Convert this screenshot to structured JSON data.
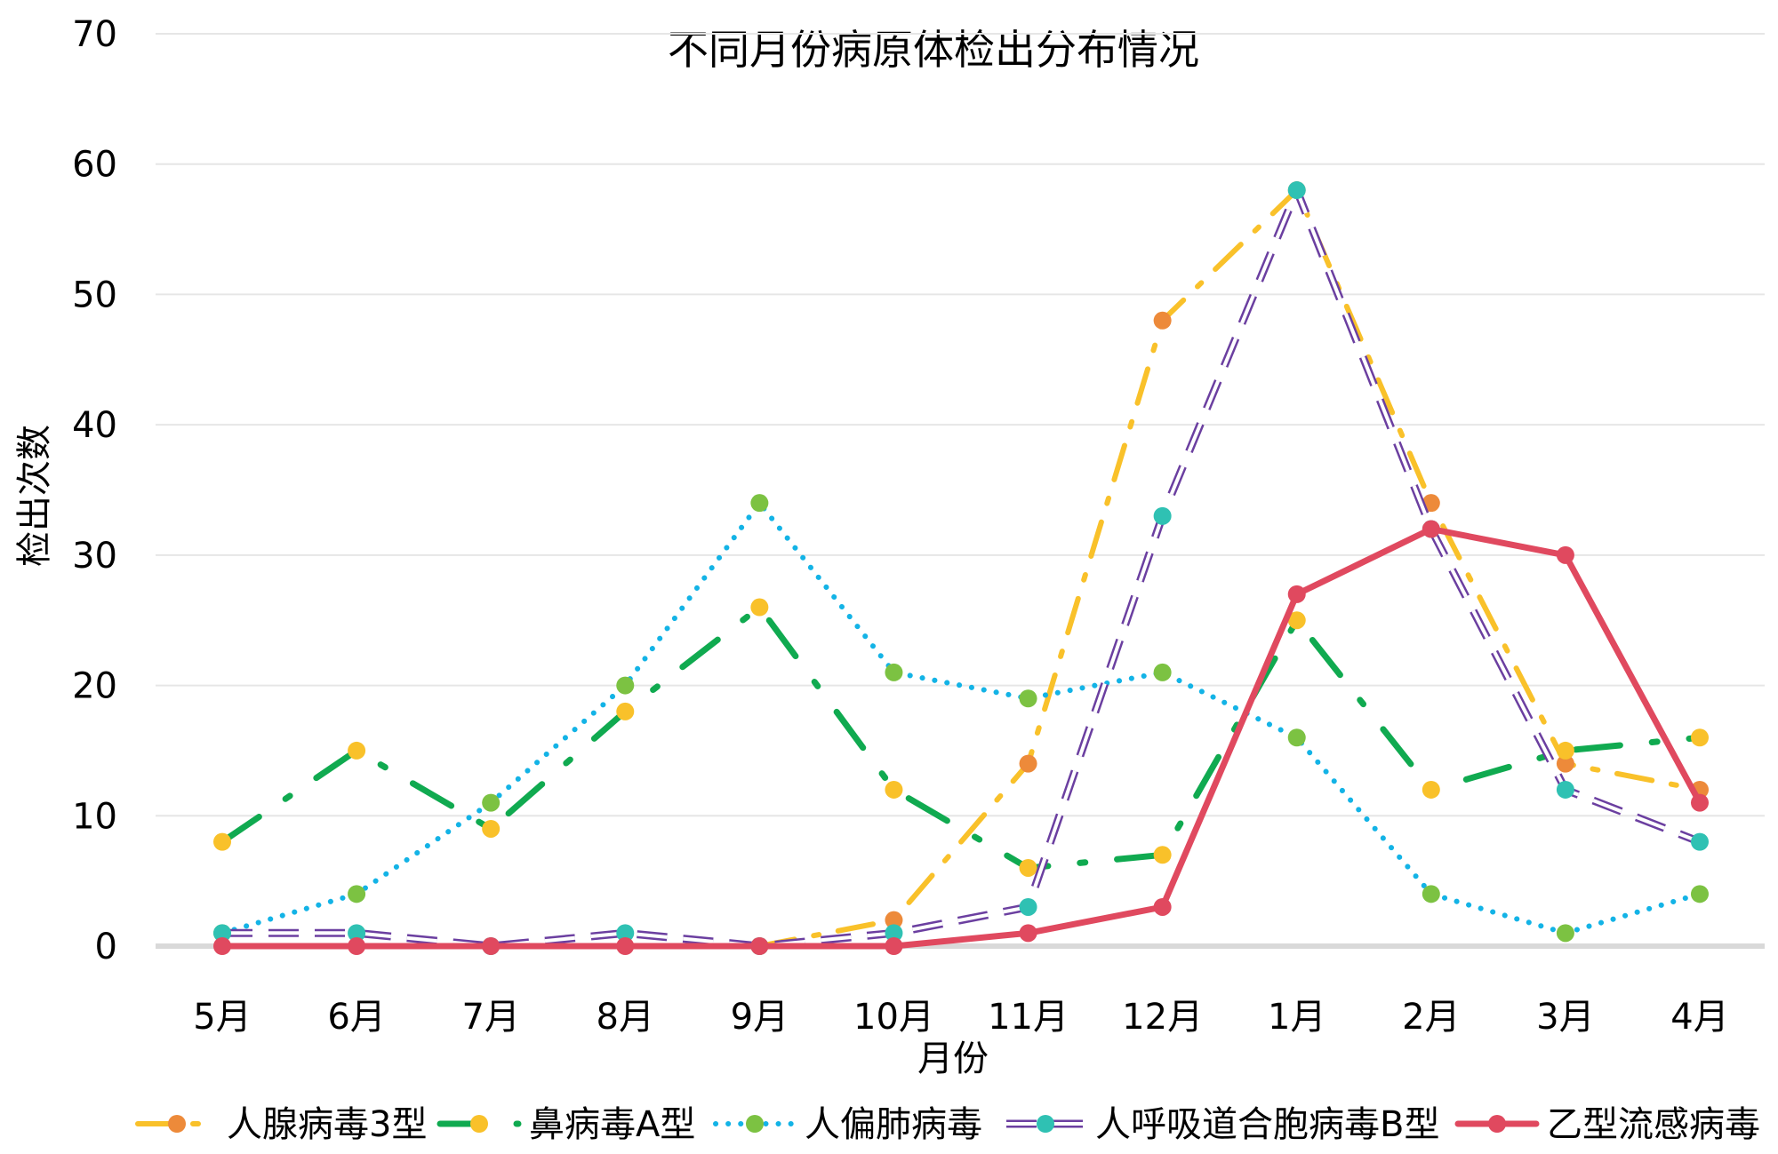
{
  "chart_data": {
    "type": "line",
    "title": "不同月份病原体检出分布情况",
    "xlabel": "月份",
    "ylabel": "检出次数",
    "ylim": [
      0,
      70
    ],
    "yticks": [
      0,
      10,
      20,
      30,
      40,
      50,
      60,
      70
    ],
    "categories": [
      "5月",
      "6月",
      "7月",
      "8月",
      "9月",
      "10月",
      "11月",
      "12月",
      "1月",
      "2月",
      "3月",
      "4月"
    ],
    "grid": true,
    "legend_position": "bottom",
    "series": [
      {
        "name": "人腺病毒3型",
        "values": [
          null,
          null,
          null,
          null,
          0,
          2,
          14,
          48,
          58,
          34,
          14,
          12
        ],
        "line_color": "#F9C12A",
        "marker_color": "#ED8A3A",
        "dash": "dashdot"
      },
      {
        "name": "鼻病毒A型",
        "values": [
          8,
          15,
          9,
          18,
          26,
          12,
          6,
          7,
          25,
          12,
          15,
          16
        ],
        "line_color": "#10AA50",
        "marker_color": "#F9C12A",
        "dash": "longdashdot"
      },
      {
        "name": "人偏肺病毒",
        "values": [
          1,
          4,
          11,
          20,
          34,
          21,
          19,
          21,
          16,
          4,
          1,
          4
        ],
        "line_color": "#13B3E6",
        "marker_color": "#7CC242",
        "dash": "dot"
      },
      {
        "name": "人呼吸道合胞病毒B型",
        "values": [
          1,
          1,
          0,
          1,
          0,
          1,
          3,
          33,
          58,
          32,
          12,
          8
        ],
        "line_color": "#6B3FA0",
        "marker_color": "#2FC1B3",
        "dash": "outline-dash"
      },
      {
        "name": "乙型流感病毒",
        "values": [
          0,
          0,
          0,
          0,
          0,
          0,
          1,
          3,
          27,
          32,
          30,
          11
        ],
        "line_color": "#E0495F",
        "marker_color": "#E0495F",
        "dash": "solid"
      }
    ]
  }
}
